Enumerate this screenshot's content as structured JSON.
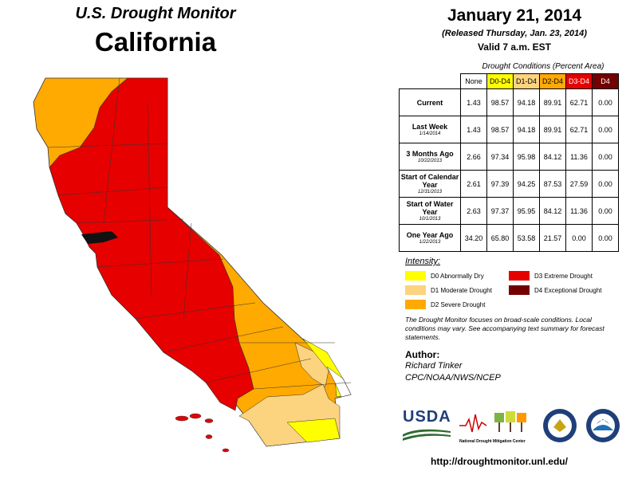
{
  "header": {
    "monitor_title": "U.S. Drought Monitor",
    "state_name": "California",
    "date": "January 21, 2014",
    "released": "(Released Thursday, Jan. 23, 2014)",
    "valid": "Valid 7 a.m. EST"
  },
  "conditions_table": {
    "caption": "Drought Conditions (Percent Area)",
    "columns": [
      "None",
      "D0-D4",
      "D1-D4",
      "D2-D4",
      "D3-D4",
      "D4"
    ],
    "rows": [
      {
        "label": "Current",
        "sub": "",
        "values": [
          "1.43",
          "98.57",
          "94.18",
          "89.91",
          "62.71",
          "0.00"
        ]
      },
      {
        "label": "Last Week",
        "sub": "1/14/2014",
        "values": [
          "1.43",
          "98.57",
          "94.18",
          "89.91",
          "62.71",
          "0.00"
        ]
      },
      {
        "label": "3 Months Ago",
        "sub": "10/22/2013",
        "values": [
          "2.66",
          "97.34",
          "95.98",
          "84.12",
          "11.36",
          "0.00"
        ]
      },
      {
        "label": "Start of Calendar Year",
        "sub": "12/31/2013",
        "values": [
          "2.61",
          "97.39",
          "94.25",
          "87.53",
          "27.59",
          "0.00"
        ]
      },
      {
        "label": "Start of Water Year",
        "sub": "10/1/2013",
        "values": [
          "2.63",
          "97.37",
          "95.95",
          "84.12",
          "11.36",
          "0.00"
        ]
      },
      {
        "label": "One Year Ago",
        "sub": "1/22/2013",
        "values": [
          "34.20",
          "65.80",
          "53.58",
          "21.57",
          "0.00",
          "0.00"
        ]
      }
    ]
  },
  "legend": {
    "title": "Intensity:",
    "items": [
      {
        "label": "D0 Abnormally Dry",
        "color": "#ffff00"
      },
      {
        "label": "D1 Moderate Drought",
        "color": "#fcd37f"
      },
      {
        "label": "D2 Severe Drought",
        "color": "#ffaa00"
      },
      {
        "label": "D3 Extreme Drought",
        "color": "#e60000"
      },
      {
        "label": "D4 Exceptional Drought",
        "color": "#730000"
      }
    ]
  },
  "note": "The Drought Monitor focuses on broad-scale conditions. Local conditions may vary. See accompanying text summary for forecast statements.",
  "author": {
    "heading": "Author:",
    "name": "Richard Tinker",
    "org": "CPC/NOAA/NWS/NCEP"
  },
  "logos": {
    "usda": "USDA",
    "ndmc": "National Drought Mitigation Center"
  },
  "url": "http://droughtmonitor.unl.edu/",
  "map_colors": {
    "none": "#ffffff",
    "d0": "#ffff00",
    "d1": "#fcd37f",
    "d2": "#ffaa00",
    "d3": "#e60000",
    "border": "#333333"
  }
}
